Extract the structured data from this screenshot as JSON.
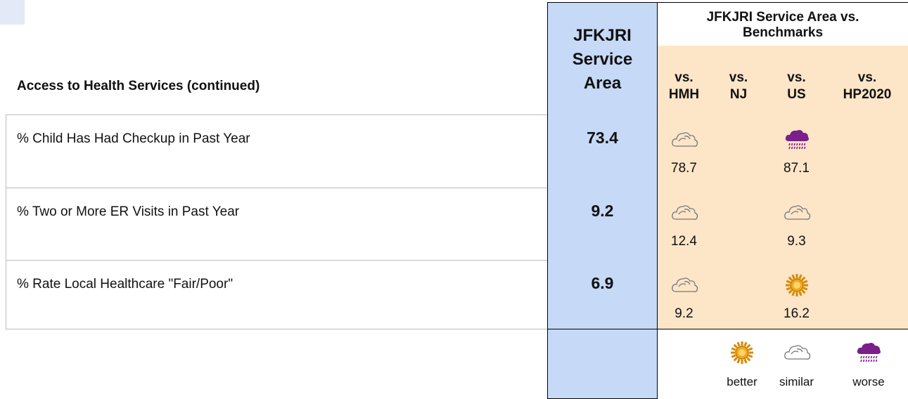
{
  "section_title": "Access to Health Services (continued)",
  "service_area_header": "JFKJRI Service Area",
  "benchmark_header": "JFKJRI Service Area vs. Benchmarks",
  "columns": [
    "vs. HMH",
    "vs. NJ",
    "vs. US",
    "vs. HP2020"
  ],
  "rows": [
    {
      "label": "% Child Has Had Checkup in Past Year",
      "value": 73.4,
      "benchmarks": [
        {
          "value": 78.7,
          "rating": "similar"
        },
        null,
        {
          "value": 87.1,
          "rating": "worse"
        },
        null
      ]
    },
    {
      "label": "% Two or More ER Visits in Past Year",
      "value": 9.2,
      "benchmarks": [
        {
          "value": 12.4,
          "rating": "similar"
        },
        null,
        {
          "value": 9.3,
          "rating": "similar"
        },
        null
      ]
    },
    {
      "label": "% Rate Local Healthcare \"Fair/Poor\"",
      "value": 6.9,
      "benchmarks": [
        {
          "value": 9.2,
          "rating": "similar"
        },
        null,
        {
          "value": 16.2,
          "rating": "better"
        },
        null
      ]
    }
  ],
  "legend": [
    {
      "rating": "better",
      "label": "better"
    },
    {
      "rating": "similar",
      "label": "similar"
    },
    {
      "rating": "worse",
      "label": "worse"
    }
  ]
}
